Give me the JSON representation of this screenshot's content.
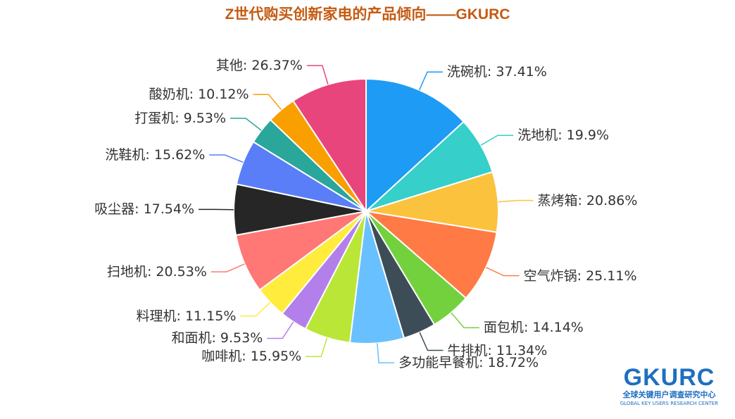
{
  "chart_data": {
    "type": "pie",
    "title": "Z世代购买创新家电的产品倾向——GKURC",
    "categories": [
      "洗碗机",
      "洗地机",
      "蒸烤箱",
      "空气炸锅",
      "面包机",
      "牛排机",
      "多功能早餐机",
      "咖啡机",
      "和面机",
      "料理机",
      "扫地机",
      "吸尘器",
      "洗鞋机",
      "打蛋机",
      "酸奶机",
      "其他"
    ],
    "values": [
      37.41,
      19.9,
      20.86,
      25.11,
      14.14,
      11.34,
      18.72,
      15.95,
      9.53,
      11.15,
      20.53,
      17.54,
      15.62,
      9.53,
      10.12,
      26.37
    ],
    "value_labels": [
      "37.41%",
      "19.9%",
      "20.86%",
      "25.11%",
      "14.14%",
      "11.34%",
      "18.72%",
      "15.95%",
      "9.53%",
      "11.15%",
      "20.53%",
      "17.54%",
      "15.62%",
      "9.53%",
      "10.12%",
      "26.37%"
    ],
    "colors": [
      "#1e9bf5",
      "#36cfc9",
      "#fbc23d",
      "#ff7a45",
      "#73d13d",
      "#3d4d57",
      "#69c0ff",
      "#bae637",
      "#b37feb",
      "#ffec3d",
      "#ff7875",
      "#262626",
      "#597ef7",
      "#2aa69a",
      "#fa9f00",
      "#e8457c"
    ]
  },
  "logo": {
    "name": "GKURC",
    "subtitle": "全球关键用户调查研究中心",
    "tagline": "GLOBAL KEY USERS RESEARCH CENTER"
  }
}
